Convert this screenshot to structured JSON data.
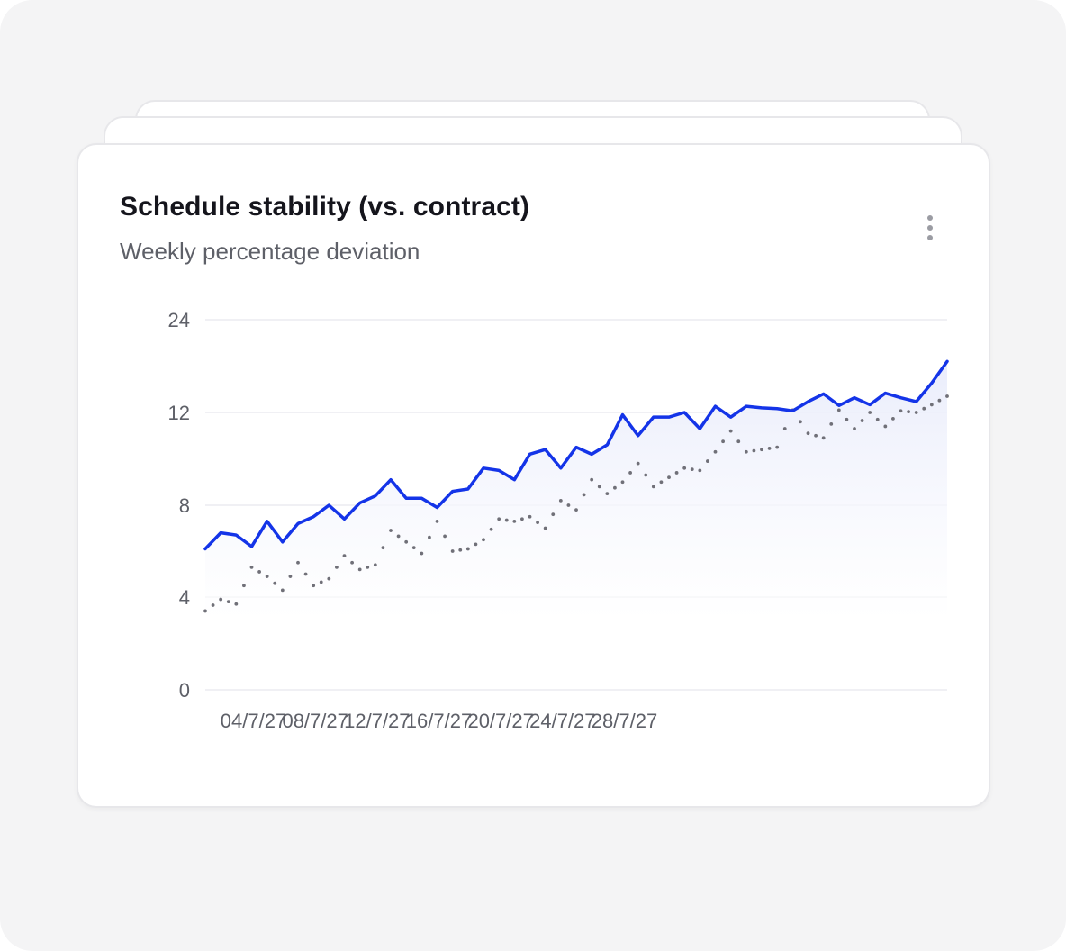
{
  "card": {
    "title": "Schedule stability (vs. contract)",
    "subtitle": "Weekly percentage deviation",
    "menu_icon": "more-vertical-icon"
  },
  "colors": {
    "actual_line": "#1434e8",
    "contract_dots": "#707078",
    "area_fill": "#eef0fc",
    "grid": "#ececf0"
  },
  "chart_data": {
    "type": "line",
    "title": "Schedule stability (vs. contract)",
    "subtitle": "Weekly percentage deviation",
    "xlabel": "",
    "ylabel": "",
    "y_ticks": [
      0,
      4,
      8,
      12,
      24
    ],
    "y_tick_labels": [
      "0",
      "4",
      "8",
      "12",
      "24"
    ],
    "x_tick_labels": [
      "04/7/27",
      "08/7/27",
      "12/7/27",
      "16/7/27",
      "20/7/27",
      "24/7/27",
      "28/7/27"
    ],
    "grid": true,
    "legend": "none",
    "series": [
      {
        "style": "solid",
        "values": [
          6.1,
          6.8,
          6.7,
          6.2,
          7.3,
          6.4,
          7.2,
          7.5,
          8.0,
          7.4,
          8.1,
          8.4,
          9.1,
          8.3,
          8.3,
          7.9,
          8.6,
          8.7,
          9.6,
          9.5,
          9.1,
          10.2,
          10.4,
          9.6,
          10.5,
          10.2,
          10.6,
          11.9,
          11.0,
          11.8,
          11.8,
          12.0,
          11.3,
          12.8,
          11.8,
          12.8,
          12.6,
          12.5,
          12.2,
          13.4,
          14.4,
          12.9,
          13.9,
          13.0,
          14.5,
          13.9,
          13.4,
          15.8,
          18.6
        ]
      },
      {
        "style": "dotted",
        "values": [
          3.4,
          3.9,
          3.7,
          5.3,
          4.9,
          4.3,
          5.5,
          4.5,
          4.8,
          5.8,
          5.2,
          5.4,
          6.9,
          6.4,
          5.9,
          7.3,
          6.0,
          6.1,
          6.5,
          7.4,
          7.3,
          7.5,
          7.0,
          8.2,
          7.8,
          9.1,
          8.5,
          9.0,
          9.8,
          8.8,
          9.2,
          9.6,
          9.5,
          10.3,
          11.2,
          10.3,
          10.4,
          10.5,
          12.3,
          11.1,
          10.9,
          12.3,
          11.3,
          12.0,
          11.4,
          12.2,
          12.0,
          13.0,
          14.1
        ]
      }
    ]
  }
}
